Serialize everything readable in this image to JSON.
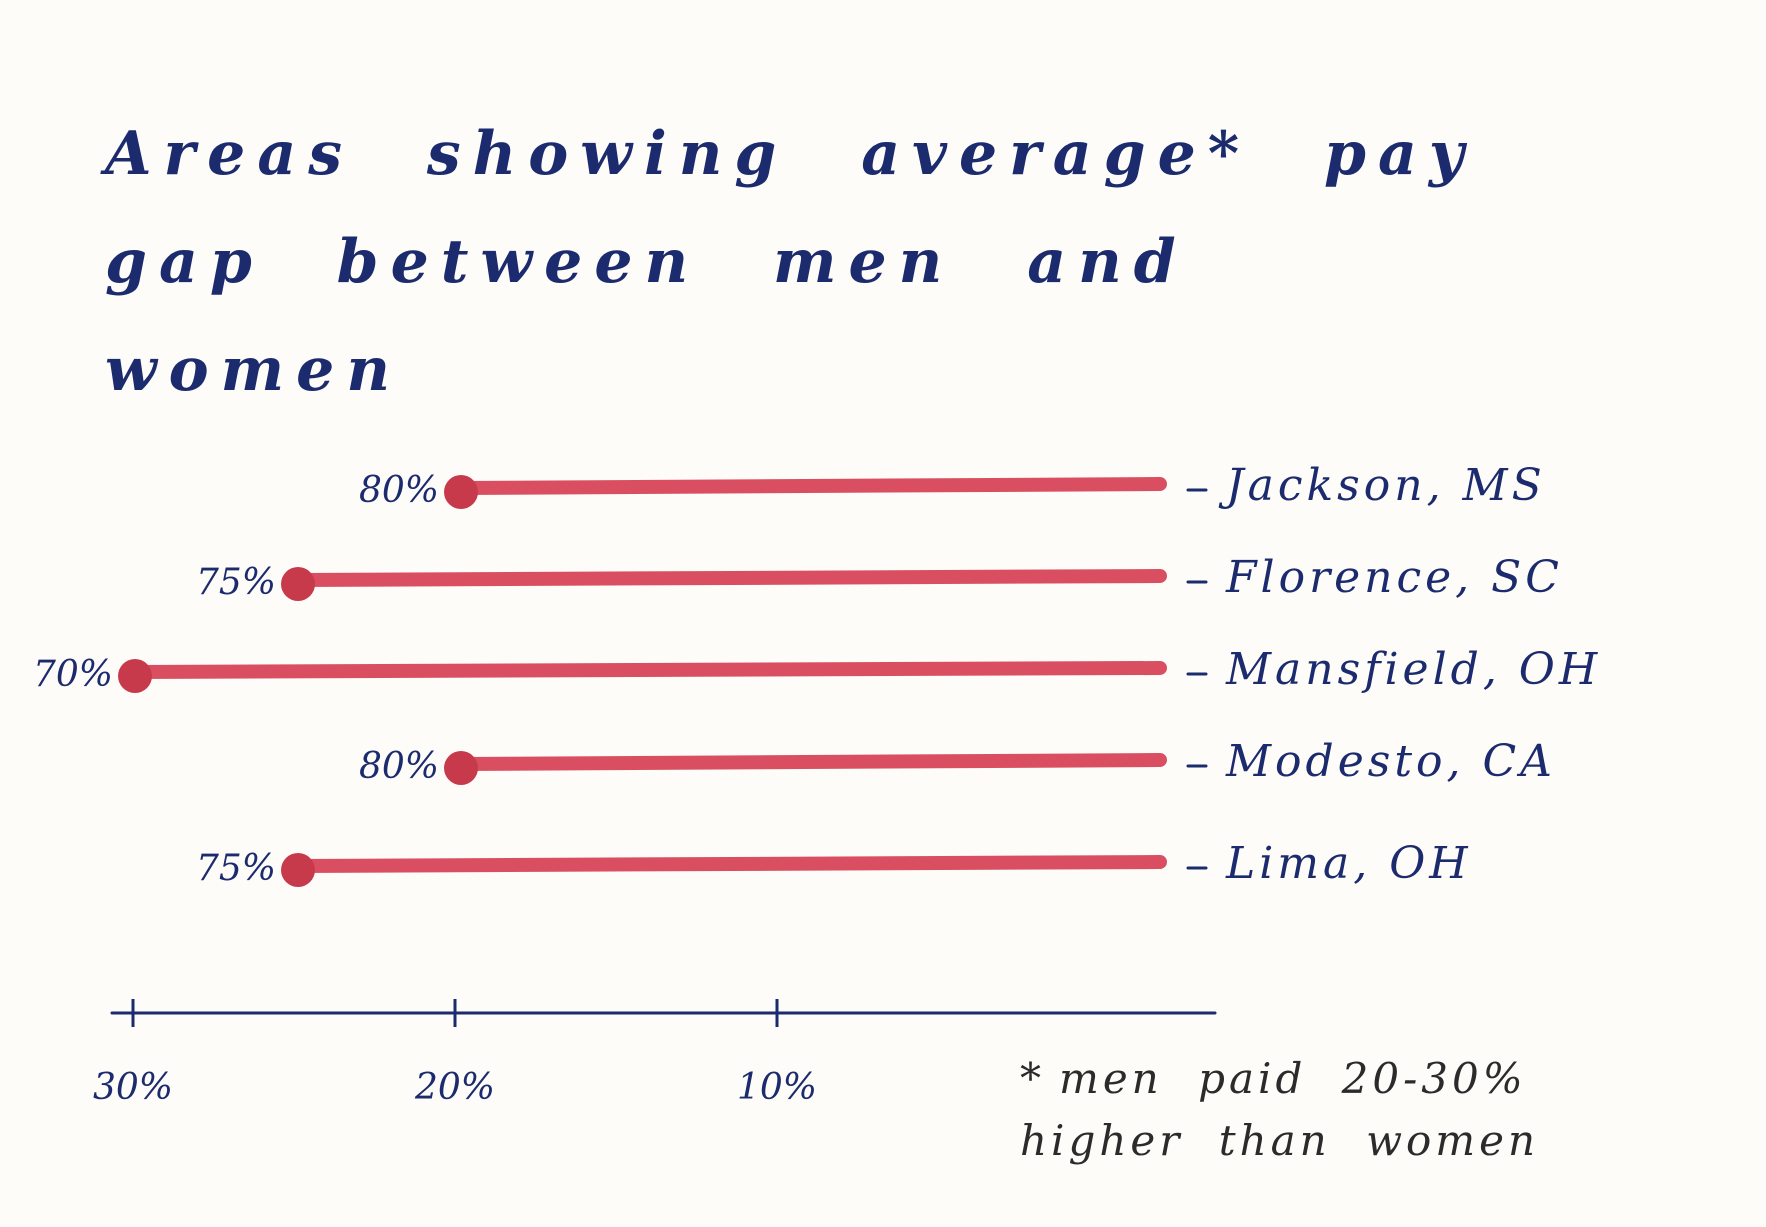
{
  "chart_data": {
    "type": "bar",
    "title": "Areas showing average* pay gap between men and women",
    "orientation": "horizontal",
    "x_axis": {
      "direction": "reversed",
      "ticks": [
        {
          "value": 30,
          "label": "30%"
        },
        {
          "value": 20,
          "label": "20%"
        },
        {
          "value": 10,
          "label": "10%"
        }
      ]
    },
    "categories": [
      "Jackson, MS",
      "Florence, SC",
      "Mansfield, OH",
      "Modesto, CA",
      "Lima, OH"
    ],
    "values": [
      80,
      75,
      70,
      80,
      75
    ],
    "value_labels": [
      "80%",
      "75%",
      "70%",
      "80%",
      "75%"
    ],
    "footnote": "men paid 20-30% higher than women",
    "footnote_marker": "*"
  },
  "colors": {
    "bar": "#d94f61",
    "dot": "#c73a4b",
    "ink": "#1c2b6e",
    "note_ink": "#2b2b2b"
  }
}
